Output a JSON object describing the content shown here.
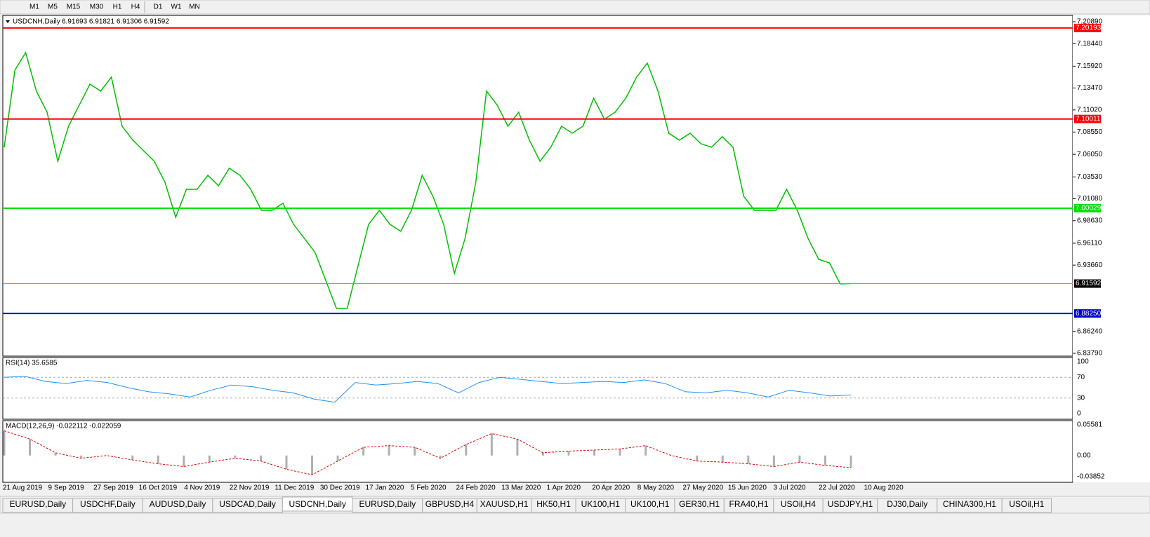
{
  "toolbar": [
    "M1",
    "M5",
    "M15",
    "M30",
    "H1",
    "H4",
    "D1",
    "W1",
    "MN"
  ],
  "header": {
    "symbol": "USDCNH,Daily",
    "ohlc": "6.91693 6.91821 6.91306 6.91592"
  },
  "price_axis": {
    "range": [
      6.8379,
      7.2089
    ],
    "ticks": [
      {
        "value": 7.2089,
        "label": "7.20890"
      },
      {
        "value": 7.1844,
        "label": "7.18440"
      },
      {
        "value": 7.1592,
        "label": "7.15920"
      },
      {
        "value": 7.1347,
        "label": "7.13470"
      },
      {
        "value": 7.1102,
        "label": "7.11020"
      },
      {
        "value": 7.0855,
        "label": "7.08550"
      },
      {
        "value": 7.0605,
        "label": "7.06050"
      },
      {
        "value": 7.0353,
        "label": "7.03530"
      },
      {
        "value": 7.0108,
        "label": "7.01080"
      },
      {
        "value": 6.9863,
        "label": "6.98630"
      },
      {
        "value": 6.9611,
        "label": "6.96110"
      },
      {
        "value": 6.9366,
        "label": "6.93660"
      },
      {
        "value": 6.8624,
        "label": "6.86240"
      },
      {
        "value": 6.8379,
        "label": "6.83790"
      }
    ]
  },
  "levels": [
    {
      "value": 7.20193,
      "label": "7.20193",
      "color": "#ff0000"
    },
    {
      "value": 7.10011,
      "label": "7.10011",
      "color": "#ff0000"
    },
    {
      "value": 7.00029,
      "label": "7.00029",
      "color": "#00e000"
    },
    {
      "value": 6.91592,
      "label": "6.91592",
      "color": "#e08040"
    },
    {
      "value": 6.8825,
      "label": "6.88250",
      "color": "#0000cc"
    }
  ],
  "price_close": [
    7.0685,
    7.1548,
    7.1744,
    7.1313,
    7.1077,
    7.0528,
    7.092,
    7.1156,
    7.1391,
    7.1313,
    7.1469,
    7.092,
    7.0764,
    7.0646,
    7.0528,
    7.0293,
    6.9901,
    7.0214,
    7.0214,
    7.0371,
    7.0254,
    7.045,
    7.0371,
    7.0214,
    6.9979,
    6.9979,
    7.0058,
    6.9822,
    6.9665,
    6.9509,
    6.9195,
    6.8881,
    6.8881,
    6.9352,
    6.9822,
    6.9979,
    6.9822,
    6.9744,
    6.9979,
    7.0371,
    7.0136,
    6.9822,
    6.9273,
    6.9665,
    7.0293,
    7.1313,
    7.1156,
    7.092,
    7.1077,
    7.0764,
    7.0528,
    7.0685,
    7.092,
    7.0842,
    7.092,
    7.1234,
    7.0999,
    7.1077,
    7.1234,
    7.1469,
    7.1626,
    7.1313,
    7.0842,
    7.0764,
    7.0842,
    7.0724,
    7.0685,
    7.0803,
    7.0685,
    7.0136,
    6.9979,
    6.9979,
    6.9979,
    7.0214,
    6.9979,
    6.9665,
    6.943,
    6.9391,
    6.9156,
    6.91592
  ],
  "dates": [
    "21 Aug 2019",
    "9 Sep 2019",
    "27 Sep 2019",
    "16 Oct 2019",
    "4 Nov 2019",
    "22 Nov 2019",
    "11 Dec 2019",
    "30 Dec 2019",
    "17 Jan 2020",
    "5 Feb 2020",
    "24 Feb 2020",
    "13 Mar 2020",
    "1 Apr 2020",
    "20 Apr 2020",
    "8 May 2020",
    "27 May 2020",
    "15 Jun 2020",
    "3 Jul 2020",
    "22 Jul 2020",
    "10 Aug 2020"
  ],
  "rsi": {
    "label": "RSI(14) 35.6585",
    "range": [
      0,
      100
    ],
    "ticks": [
      100,
      70,
      30,
      0
    ],
    "values": [
      70,
      72,
      62,
      58,
      64,
      60,
      50,
      42,
      38,
      32,
      45,
      55,
      52,
      45,
      40,
      28,
      22,
      60,
      55,
      58,
      62,
      58,
      40,
      60,
      70,
      66,
      62,
      58,
      60,
      62,
      60,
      65,
      58,
      42,
      40,
      45,
      40,
      32,
      45,
      40,
      34,
      36
    ]
  },
  "macd": {
    "label": "MACD(12,26,9) -0.022112 -0.022059",
    "range": [
      -0.03852,
      0.05581
    ],
    "ticks": [
      {
        "value": 0.05581,
        "label": "0.05581"
      },
      {
        "value": 0,
        "label": "0.00"
      },
      {
        "value": -0.03852,
        "label": "-0.03852"
      }
    ],
    "signal": [
      0.045,
      0.03,
      0.005,
      -0.005,
      0.0,
      -0.008,
      -0.015,
      -0.02,
      -0.012,
      -0.005,
      -0.01,
      -0.025,
      -0.035,
      -0.01,
      0.015,
      0.018,
      0.015,
      -0.005,
      0.02,
      0.04,
      0.03,
      0.005,
      0.008,
      0.01,
      0.012,
      0.018,
      0.0,
      -0.01,
      -0.012,
      -0.015,
      -0.02,
      -0.012,
      -0.018,
      -0.022
    ]
  },
  "tabs": [
    "EURUSD,Daily",
    "USDCHF,Daily",
    "AUDUSD,Daily",
    "USDCAD,Daily",
    "USDCNH,Daily",
    "EURUSD,Daily",
    "GBPUSD,H4",
    "XAUUSD,H1",
    "HK50,H1",
    "UK100,H1",
    "UK100,H1",
    "GER30,H1",
    "FRA40,H1",
    "USOil,H4",
    "USDJPY,H1",
    "DJ30,Daily",
    "CHINA300,H1",
    "USOil,H1"
  ]
}
